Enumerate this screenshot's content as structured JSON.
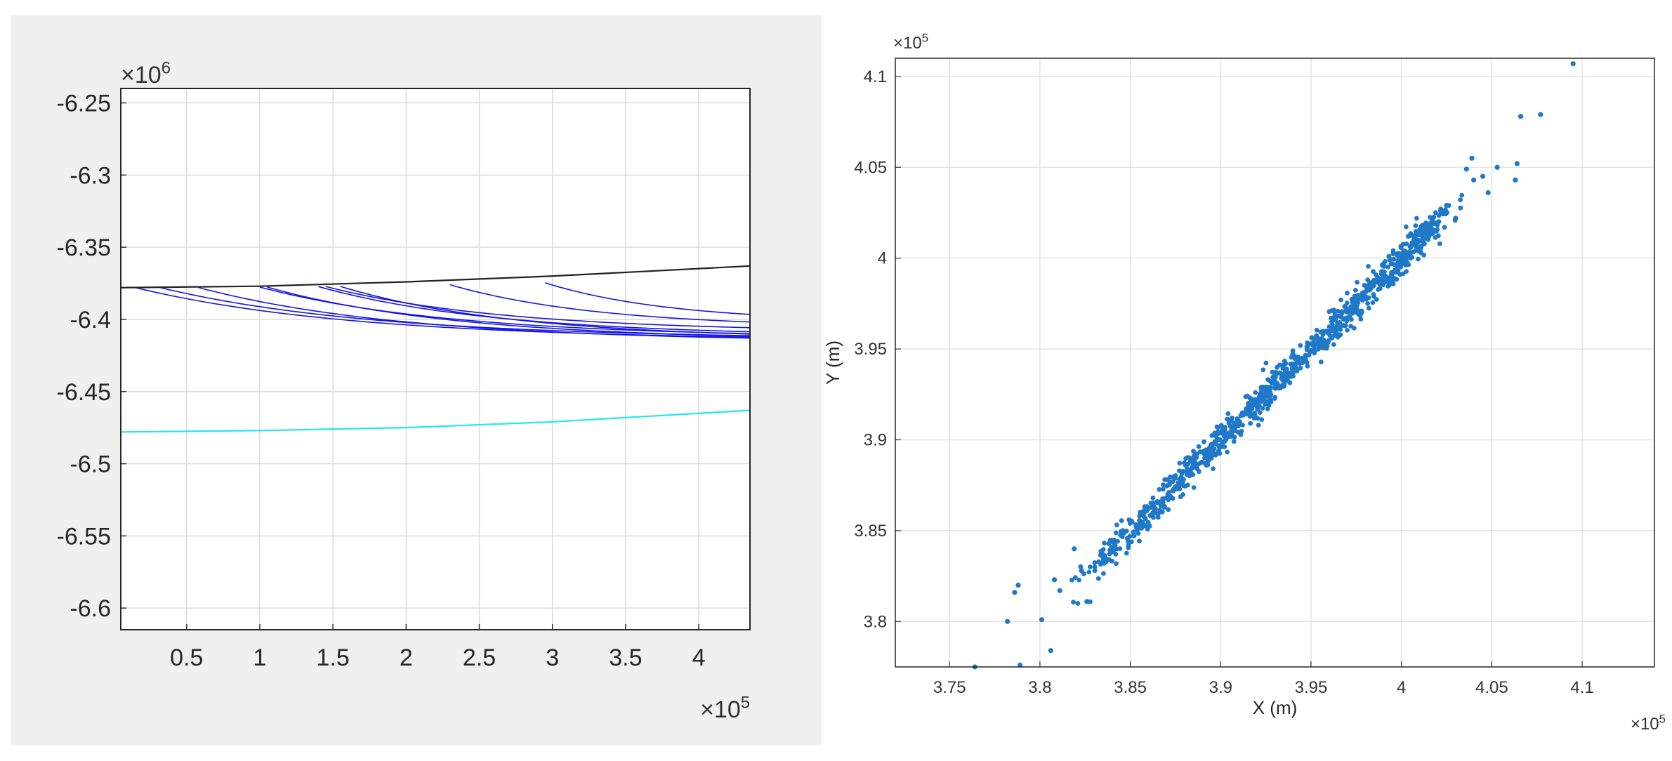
{
  "chart_data": [
    {
      "type": "line",
      "title": "",
      "xlabel": "",
      "ylabel": "",
      "x_exponent_label": "×10^5",
      "y_exponent_label": "×10^6",
      "xlim": [
        0.05,
        4.35
      ],
      "ylim": [
        -6.615,
        -6.24
      ],
      "xticks": [
        0.5,
        1,
        1.5,
        2,
        2.5,
        3,
        3.5,
        4
      ],
      "xtick_labels": [
        "0.5",
        "1",
        "1.5",
        "2",
        "2.5",
        "3",
        "3.5",
        "4"
      ],
      "yticks": [
        -6.25,
        -6.3,
        -6.35,
        -6.4,
        -6.45,
        -6.5,
        -6.55,
        -6.6
      ],
      "ytick_labels": [
        "-6.25",
        "-6.3",
        "-6.35",
        "-6.4",
        "-6.45",
        "-6.5",
        "-6.55",
        "-6.6"
      ],
      "grid": true,
      "colors": {
        "upper": "#222222",
        "lower": "#22e5f0",
        "rays": "#1414e6"
      },
      "series": [
        {
          "x": [
            0.05,
            1.0,
            2.0,
            3.0,
            4.35
          ],
          "y": [
            -6.378,
            -6.377,
            -6.374,
            -6.37,
            -6.363
          ]
        },
        {
          "x": [
            0.05,
            1.0,
            2.0,
            3.0,
            4.35
          ],
          "y": [
            -6.478,
            -6.477,
            -6.475,
            -6.471,
            -6.463
          ]
        }
      ],
      "ray_curves": [
        {
          "x_start": 0.15,
          "asymptote": -6.415
        },
        {
          "x_start": 0.32,
          "asymptote": -6.414
        },
        {
          "x_start": 0.58,
          "asymptote": -6.416
        },
        {
          "x_start": 1.0,
          "asymptote": -6.413
        },
        {
          "x_start": 1.05,
          "asymptote": -6.415
        },
        {
          "x_start": 1.4,
          "asymptote": -6.412
        },
        {
          "x_start": 1.45,
          "asymptote": -6.409
        },
        {
          "x_start": 1.55,
          "asymptote": -6.414
        },
        {
          "x_start": 2.3,
          "asymptote": -6.406
        },
        {
          "x_start": 2.95,
          "asymptote": -6.402
        }
      ]
    },
    {
      "type": "scatter",
      "title": "",
      "xlabel": "X (m)",
      "ylabel": "Y (m)",
      "x_exponent_label": "×10^5",
      "y_exponent_label": "×10^5",
      "xlim": [
        3.72,
        4.14
      ],
      "ylim": [
        3.775,
        4.11
      ],
      "xticks": [
        3.75,
        3.8,
        3.85,
        3.9,
        3.95,
        4.0,
        4.05,
        4.1
      ],
      "xtick_labels": [
        "3.75",
        "3.8",
        "3.85",
        "3.9",
        "3.95",
        "4",
        "4.05",
        "4.1"
      ],
      "yticks": [
        3.8,
        3.85,
        3.9,
        3.95,
        4.0,
        4.05,
        4.1
      ],
      "ytick_labels": [
        "3.8",
        "3.85",
        "3.9",
        "3.95",
        "4",
        "4.05",
        "4.1"
      ],
      "grid": true,
      "colors": {
        "points": "#1f78c8"
      },
      "trend": {
        "slope": 1.0,
        "intercept": 0.0,
        "spread": 0.0045,
        "x_range": [
          3.83,
          4.02
        ]
      },
      "sampled_point_count": 1000,
      "points": [
        [
          3.764,
          3.775
        ],
        [
          3.782,
          3.8
        ],
        [
          3.786,
          3.816
        ],
        [
          3.788,
          3.82
        ],
        [
          3.789,
          3.776
        ],
        [
          3.801,
          3.801
        ],
        [
          3.806,
          3.784
        ],
        [
          3.808,
          3.823
        ],
        [
          3.811,
          3.817
        ],
        [
          3.819,
          3.84
        ],
        [
          3.823,
          3.828
        ],
        [
          3.826,
          3.811
        ],
        [
          4.025,
          4.029
        ],
        [
          4.03,
          4.022
        ],
        [
          4.036,
          4.049
        ],
        [
          4.039,
          4.055
        ],
        [
          4.04,
          4.043
        ],
        [
          4.045,
          4.045
        ],
        [
          4.048,
          4.036
        ],
        [
          4.053,
          4.05
        ],
        [
          4.063,
          4.043
        ],
        [
          4.064,
          4.052
        ],
        [
          4.066,
          4.078
        ],
        [
          4.077,
          4.079
        ],
        [
          4.095,
          4.107
        ]
      ]
    }
  ]
}
